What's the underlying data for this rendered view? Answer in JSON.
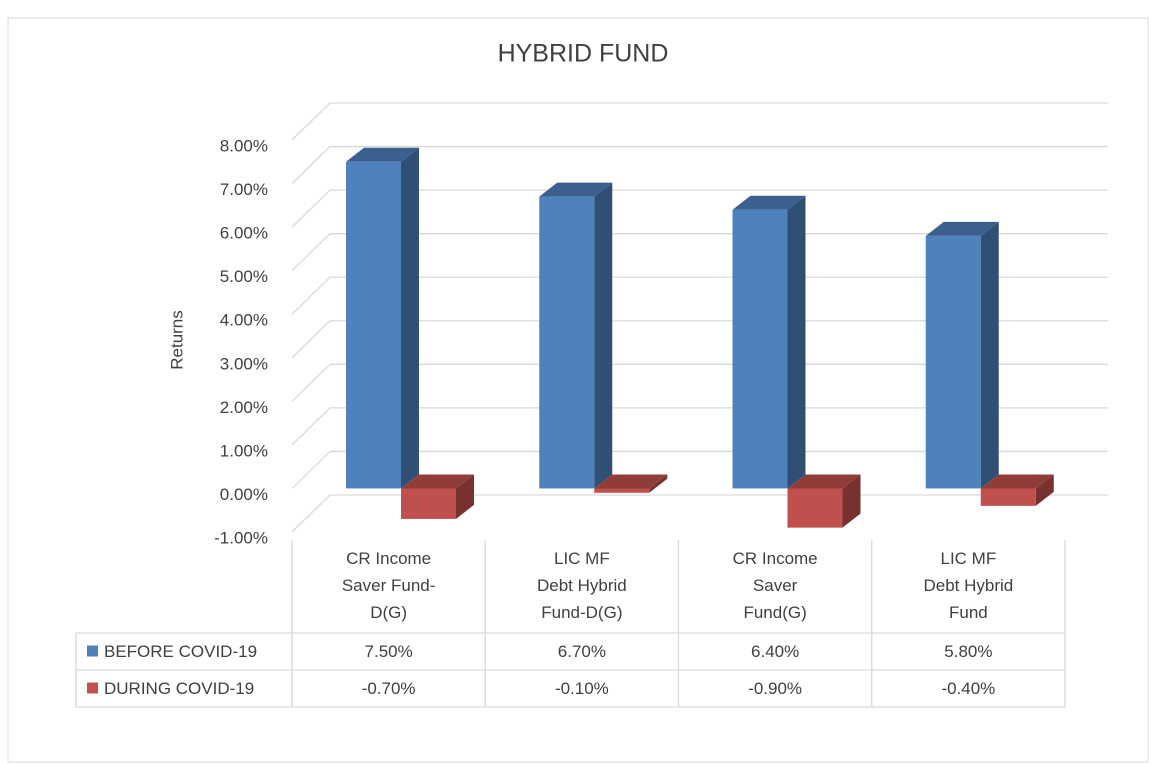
{
  "chart_data": {
    "type": "bar3d",
    "title": "HYBRID FUND",
    "y_label": "Returns",
    "categories": [
      "CR Income\nSaver Fund-\nD(G)",
      "LIC MF\nDebt Hybrid\nFund-D(G)",
      "CR Income\nSaver\nFund(G)",
      "LIC MF\nDebt Hybrid\nFund"
    ],
    "series": [
      {
        "name": "BEFORE COVID-19",
        "color": "#4f81bd",
        "values": [
          7.5,
          6.7,
          6.4,
          5.8
        ],
        "value_labels": [
          "7.50%",
          "6.70%",
          "6.40%",
          "5.80%"
        ]
      },
      {
        "name": "DURING COVID-19",
        "color": "#c0504d",
        "values": [
          -0.7,
          -0.1,
          -0.9,
          -0.4
        ],
        "value_labels": [
          "-0.70%",
          "-0.10%",
          "-0.90%",
          "-0.40%"
        ]
      }
    ],
    "ylim": [
      -1,
      8
    ],
    "yticks": [
      {
        "value": -1,
        "label": "-1.00%"
      },
      {
        "value": 0,
        "label": "0.00%"
      },
      {
        "value": 1,
        "label": "1.00%"
      },
      {
        "value": 2,
        "label": "2.00%"
      },
      {
        "value": 3,
        "label": "3.00%"
      },
      {
        "value": 4,
        "label": "4.00%"
      },
      {
        "value": 5,
        "label": "5.00%"
      },
      {
        "value": 6,
        "label": "6.00%"
      },
      {
        "value": 7,
        "label": "7.00%"
      },
      {
        "value": 8,
        "label": "8.00%"
      }
    ],
    "grid": true,
    "data_table": true
  }
}
